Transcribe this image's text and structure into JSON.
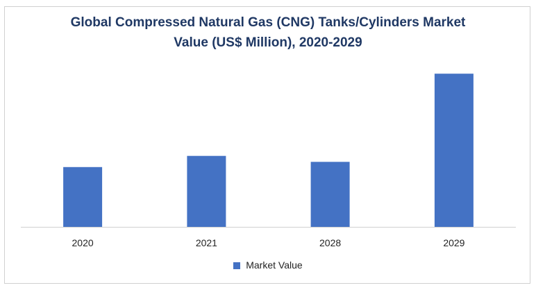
{
  "chart_data": {
    "type": "bar",
    "title_line1": "Global Compressed Natural Gas (CNG) Tanks/Cylinders Market",
    "title_line2": "Value (US$ Million), 2020-2029",
    "categories": [
      "2020",
      "2021",
      "2028",
      "2029"
    ],
    "series": [
      {
        "name": "Market Value",
        "values": [
          80,
          95,
          87,
          205
        ]
      }
    ],
    "xlabel": "",
    "ylabel": "",
    "ylim": [
      0,
      220
    ],
    "grid": false,
    "y_axis_shown": false,
    "legend_position": "bottom",
    "bar_color": "#4472c4"
  }
}
